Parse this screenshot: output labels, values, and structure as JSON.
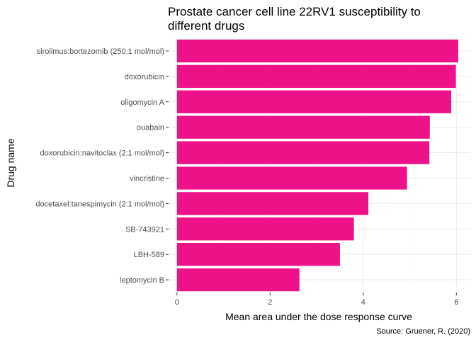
{
  "chart_data": {
    "type": "bar",
    "orientation": "horizontal",
    "title": "Prostate cancer cell line 22RV1 susceptibility to different drugs",
    "title_lines": [
      "Prostate cancer cell line 22RV1 susceptibility to",
      "different drugs"
    ],
    "xlabel": "Mean area under the dose response curve",
    "ylabel": "Drug name",
    "caption": "Source: Gruener, R. (2020)",
    "categories": [
      "sirolimus:bortezomib (250:1 mol/mol)",
      "doxorubicin",
      "oligomycin A",
      "ouabain",
      "doxorubicin:navitoclax (2:1 mol/mol)",
      "vincristine",
      "docetaxel:tanespimycin (2:1 mol/mol)",
      "SB-743921",
      "LBH-589",
      "leptomycin B"
    ],
    "values": [
      6.04,
      5.99,
      5.89,
      5.43,
      5.42,
      4.94,
      4.11,
      3.8,
      3.5,
      2.63
    ],
    "x_ticks": [
      0,
      2,
      4,
      6
    ],
    "xlim": [
      -0.18,
      6.3
    ],
    "bar_color": "#EE1289",
    "grid": true,
    "legend": "none"
  }
}
